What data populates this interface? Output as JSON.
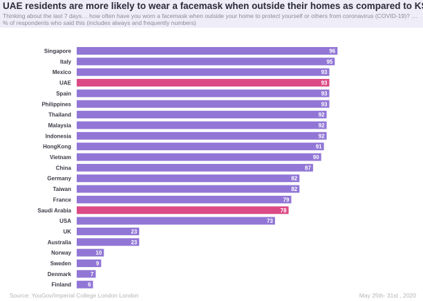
{
  "chart_data": {
    "type": "bar",
    "orientation": "horizontal",
    "title": "UAE residents are more likely to wear a facemask when outside their homes as compared to KSA residents",
    "subtitle": "Thinking about the last 7 days… how often have you worn a facemask when outside your home to protect yourself or others from coronavirus (COVID-19)? …% of respondents who said this (includes always and frequently numbers)",
    "categories": [
      "Singapore",
      "Italy",
      "Mexico",
      "UAE",
      "Spain",
      "Philippines",
      "Thailand",
      "Malaysia",
      "Indonesia",
      "HongKong",
      "Vietnam",
      "China",
      "Germany",
      "Taiwan",
      "France",
      "Saudi Arabia",
      "USA",
      "UK",
      "Australia",
      "Norway",
      "Sweden",
      "Denmark",
      "Finland"
    ],
    "values": [
      96,
      95,
      93,
      93,
      93,
      93,
      92,
      92,
      92,
      91,
      90,
      87,
      82,
      82,
      79,
      78,
      73,
      23,
      23,
      10,
      9,
      7,
      6
    ],
    "highlight": [
      "UAE",
      "Saudi Arabia"
    ],
    "colors": {
      "default": "#9176d6",
      "highlight": "#dc4a86"
    },
    "xlim": [
      0,
      100
    ],
    "xlabel": "",
    "ylabel": ""
  },
  "footer": {
    "source": "Source: YouGov/Imperial College London London",
    "date": "May 25th- 31st , 2020"
  }
}
